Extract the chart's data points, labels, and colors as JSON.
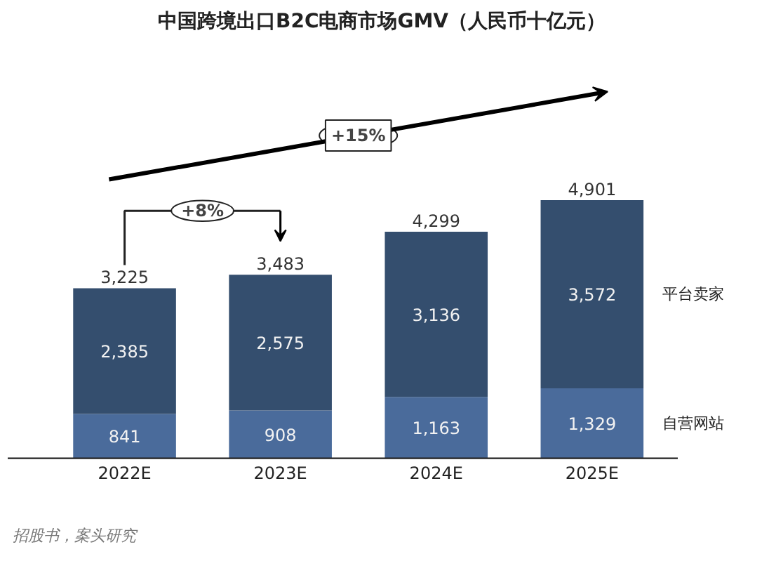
{
  "chart_data": {
    "type": "bar",
    "title": "中国跨境出口B2C电商市场GMV（人民币十亿元）",
    "categories": [
      "2022E",
      "2023E",
      "2024E",
      "2025E"
    ],
    "stacked": true,
    "legend": "right",
    "grid": false,
    "series": [
      {
        "name": "自营网站",
        "color": "#4a6b9b",
        "values": [
          841,
          908,
          1163,
          1329
        ],
        "value_labels": [
          "841",
          "908",
          "1,163",
          "1,329"
        ]
      },
      {
        "name": "平台卖家",
        "color": "#344e6e",
        "values": [
          2385,
          2575,
          3136,
          3572
        ],
        "value_labels": [
          "2,385",
          "2,575",
          "3,136",
          "3,572"
        ]
      }
    ],
    "totals": [
      "3,225",
      "3,483",
      "4,299",
      "4,901"
    ],
    "annotations": [
      "+15%",
      "+8%",
      "招股书，案头研究"
    ]
  }
}
